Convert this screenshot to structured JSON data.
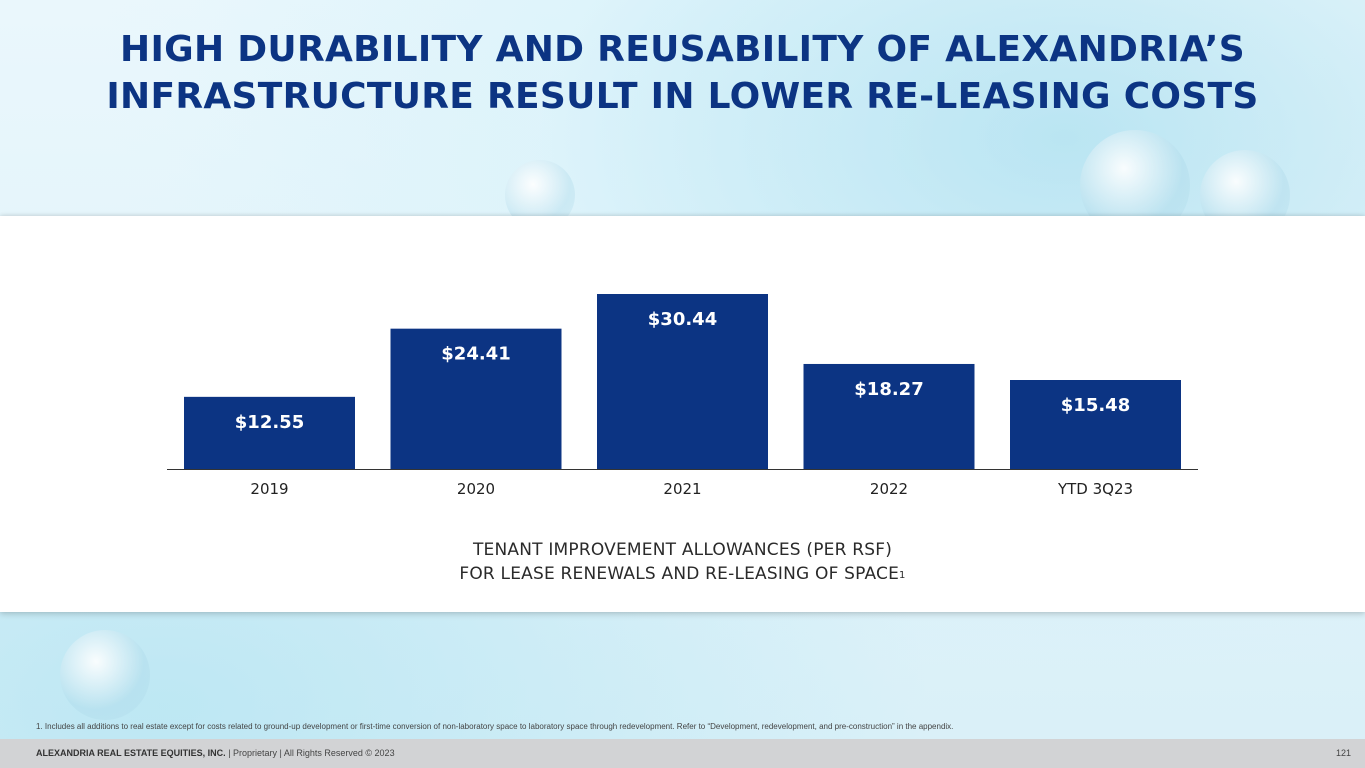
{
  "title": {
    "line1": "HIGH DURABILITY AND REUSABILITY OF ALEXANDRIA’S",
    "line2": "INFRASTRUCTURE RESULT IN LOWER RE-LEASING COSTS"
  },
  "chart_data": {
    "type": "bar",
    "categories": [
      "2019",
      "2020",
      "2021",
      "2022",
      "YTD 3Q23"
    ],
    "values": [
      12.55,
      24.41,
      30.44,
      18.27,
      15.48
    ],
    "data_labels": [
      "$12.55",
      "$24.41",
      "$30.44",
      "$18.27",
      "$15.48"
    ],
    "ylim": [
      0,
      30.44
    ],
    "bar_color": "#0c3483",
    "grid": false,
    "legend": "none"
  },
  "caption": {
    "line1": "TENANT IMPROVEMENT ALLOWANCES (PER RSF)",
    "line2": "FOR LEASE RENEWALS AND RE-LEASING OF SPACE",
    "superscript": "1"
  },
  "footnote": "1.   Includes all additions to real estate except for costs related to ground-up development or first-time conversion of non-laboratory space to laboratory space through redevelopment. Refer to “Development, redevelopment, and pre-construction” in the appendix.",
  "footer": {
    "company": "ALEXANDRIA REAL ESTATE EQUITIES, INC.",
    "rights": " | Proprietary | All Rights Reserved © 2023",
    "page_number": "121"
  },
  "colors": {
    "title": "#0c3483",
    "bars": "#0c3483",
    "footer_bg": "#d2d3d5"
  }
}
